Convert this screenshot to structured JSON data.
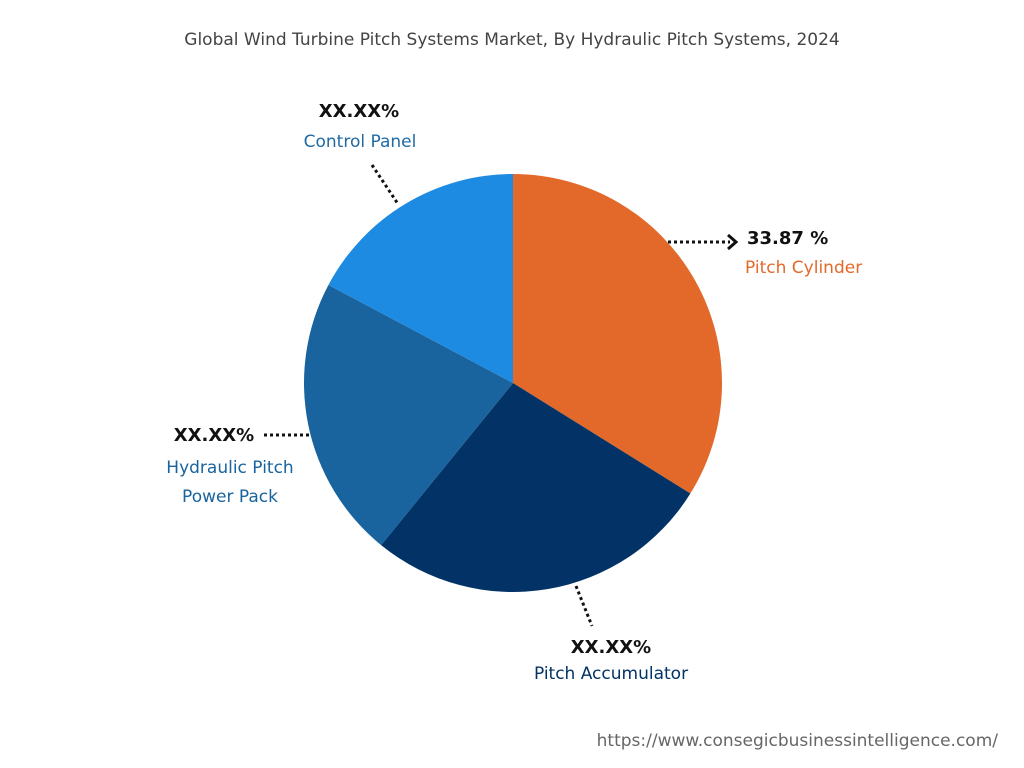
{
  "chart_data": {
    "type": "pie",
    "title": "Global Wind Turbine Pitch Systems Market, By Hydraulic Pitch Systems, 2024",
    "categories": [
      "Pitch Cylinder",
      "Pitch Accumulator",
      "Hydraulic Pitch Power Pack",
      "Control Panel"
    ],
    "values": [
      33.87,
      27.0,
      21.9,
      17.23
    ],
    "value_labels": [
      "33.87 %",
      "XX.XX%",
      "XX.XX%",
      "XX.XX%"
    ],
    "colors": [
      "#e3692a",
      "#033366",
      "#19649e",
      "#1e8be3"
    ],
    "source": "https://www.consegicbusinessintelligence.com/"
  }
}
